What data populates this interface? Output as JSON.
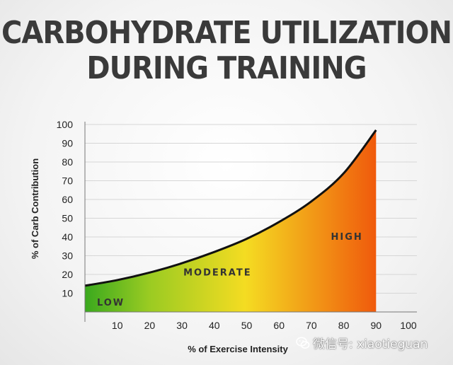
{
  "chart_data": {
    "type": "area",
    "title_lines": [
      "CARBOHYDRATE UTILIZATION",
      "DURING TRAINING"
    ],
    "xlabel": "% of Exercise Intensity",
    "ylabel": "% of Carb Contribution",
    "xlim": [
      0,
      100
    ],
    "ylim": [
      0,
      100
    ],
    "x_ticks": [
      10,
      20,
      30,
      40,
      50,
      60,
      70,
      80,
      90,
      100
    ],
    "y_ticks": [
      10,
      20,
      30,
      40,
      50,
      60,
      70,
      80,
      90,
      100
    ],
    "grid": "horizontal",
    "series": [
      {
        "x": [
          0,
          10,
          20,
          30,
          40,
          50,
          60,
          70,
          80,
          90
        ],
        "values": [
          14,
          17,
          21,
          26,
          32,
          39,
          48,
          59,
          74,
          97
        ]
      }
    ],
    "zones": [
      {
        "label": "LOW",
        "x": 8,
        "y": 5,
        "color": "#4cb520"
      },
      {
        "label": "MODERATE",
        "x": 41,
        "y": 21,
        "color": "#f2d41e"
      },
      {
        "label": "HIGH",
        "x": 81,
        "y": 40,
        "color": "#f26a10"
      }
    ],
    "colors": {
      "low": "#3aa91e",
      "moderate": "#f4dc22",
      "high": "#f05a0c",
      "curve": "#111111",
      "zone_text": "#333333"
    }
  },
  "watermark": {
    "text": "微信号: xiaotieguan",
    "icon": "wechat-logo-icon"
  }
}
